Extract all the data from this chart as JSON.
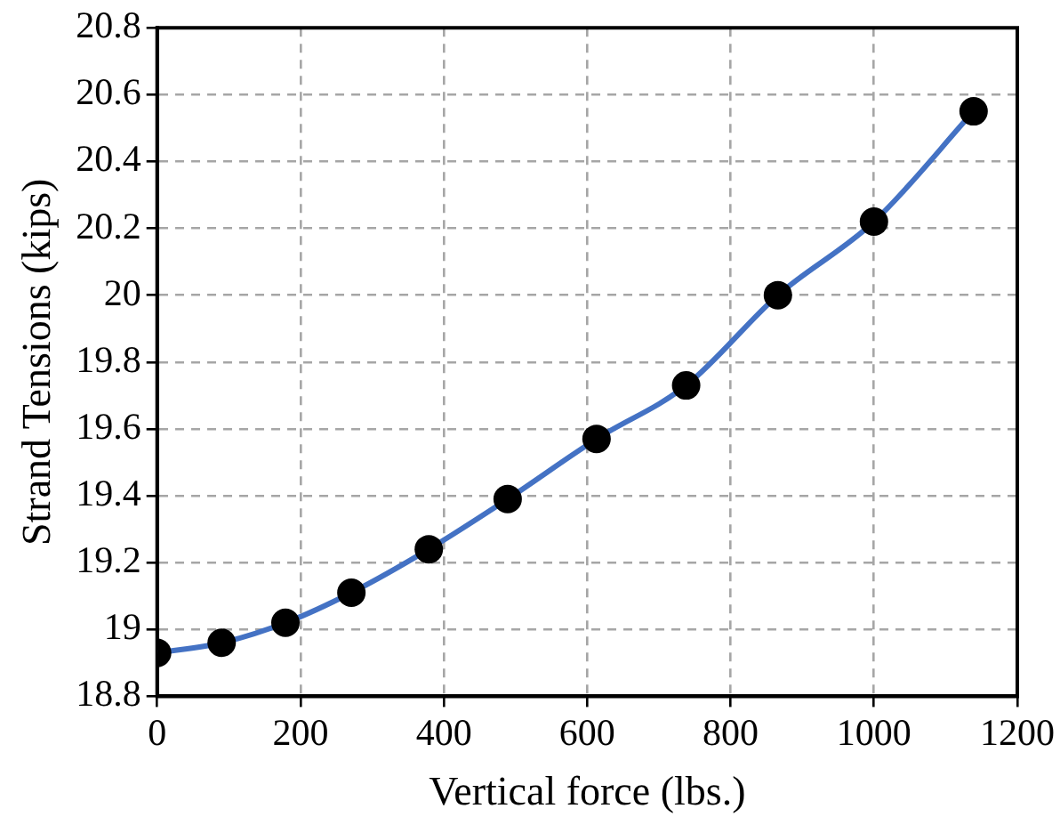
{
  "chart_data": {
    "type": "line",
    "xlabel": "Vertical force (lbs.)",
    "ylabel": "Strand Tensions (kips)",
    "x": [
      0,
      90,
      179,
      271,
      379,
      489,
      613,
      738,
      866,
      1000,
      1139
    ],
    "series": [
      {
        "color": "#4472c4",
        "values": [
          18.93,
          18.96,
          19.02,
          19.11,
          19.24,
          19.39,
          19.57,
          19.73,
          20.0,
          20.22,
          20.55
        ]
      }
    ],
    "xlim": [
      0,
      1200
    ],
    "xticks": [
      0,
      200,
      400,
      600,
      800,
      1000,
      1200
    ],
    "ylim": [
      18.8,
      20.8
    ],
    "yticks": [
      {
        "value": 18.8,
        "label": "18.8"
      },
      19,
      {
        "value": 19.2,
        "label": "19.2"
      },
      {
        "value": 19.4,
        "label": "19.4"
      },
      {
        "value": 19.6,
        "label": "19.6"
      },
      {
        "value": 19.8,
        "label": "19.8"
      },
      20,
      {
        "value": 20.2,
        "label": "20.2"
      },
      {
        "value": 20.4,
        "label": "20.4"
      },
      {
        "value": 20.6,
        "label": "20.6"
      },
      {
        "value": 20.8,
        "label": "20.8"
      }
    ],
    "grid": true,
    "legend": false,
    "marker": "circle",
    "line_style": "solid"
  }
}
